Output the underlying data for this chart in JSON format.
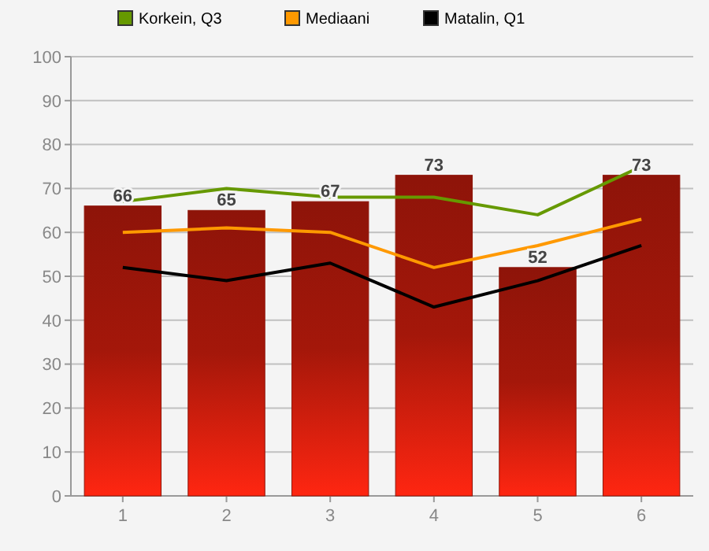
{
  "chart_data": {
    "type": "bar",
    "categories": [
      "1",
      "2",
      "3",
      "4",
      "5",
      "6"
    ],
    "series": [
      {
        "color": "#8e1409",
        "values": [
          66,
          65,
          67,
          73,
          52,
          73
        ],
        "value_labels": [
          "66",
          "65",
          "67",
          "73",
          "52",
          "73"
        ]
      },
      {
        "type": "line",
        "name": "Korkein, Q3",
        "color": "#669900",
        "values": [
          67,
          70,
          68,
          68,
          64,
          75
        ]
      },
      {
        "type": "line",
        "name": "Mediaani",
        "color": "#ff9900",
        "values": [
          60,
          61,
          60,
          52,
          57,
          63
        ]
      },
      {
        "type": "line",
        "name": "Matalin, Q1",
        "color": "#000000",
        "values": [
          52,
          49,
          53,
          43,
          49,
          57
        ]
      }
    ],
    "ylim": [
      0,
      100
    ],
    "yticks": [
      0,
      10,
      20,
      30,
      40,
      50,
      60,
      70,
      80,
      90,
      100
    ],
    "grid": "y",
    "legend": "top",
    "marker": "none"
  }
}
